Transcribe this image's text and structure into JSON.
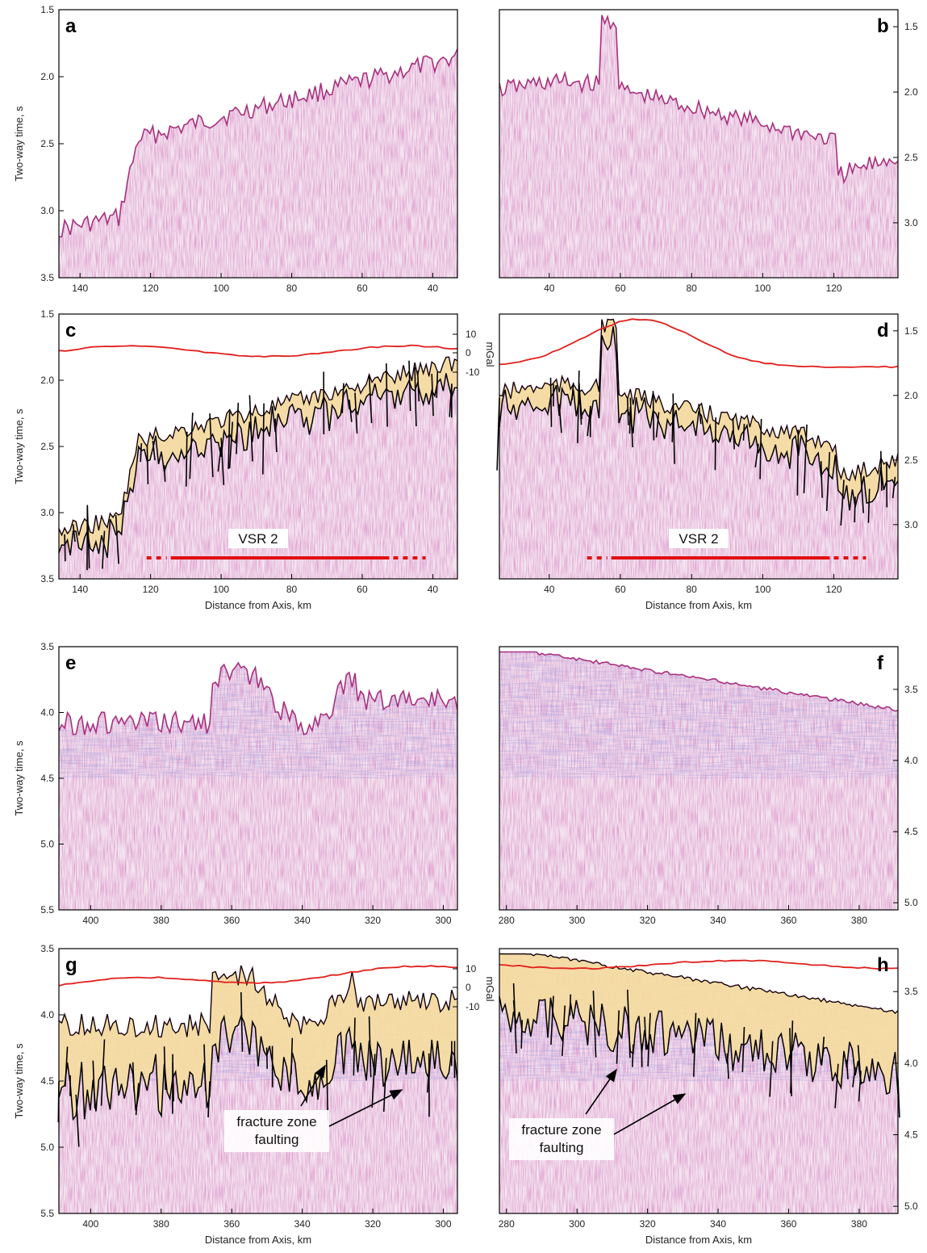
{
  "y_axis_label": "Two-way time, s",
  "x_axis_label": "Distance from Axis, km",
  "gravity_unit": "mGal",
  "colors": {
    "sediment_fill": "#f5dca0",
    "gravity_line": "#e0201c",
    "seismic_base": "#f3e5f0",
    "seismic_trace": "#a8307e",
    "horizon_line": "#000000"
  },
  "panels": [
    {
      "label": "a",
      "xticks": [
        140,
        120,
        100,
        80,
        60,
        40
      ],
      "yticks": [
        "1.5",
        "2.0",
        "2.5",
        "3.0",
        "3.5"
      ],
      "yaxis_side": "left",
      "interpreted": false
    },
    {
      "label": "b",
      "xticks": [
        40,
        60,
        80,
        100,
        120
      ],
      "yticks": [
        "1.5",
        "2.0",
        "2.5",
        "3.0"
      ],
      "yaxis_side": "right",
      "interpreted": false
    },
    {
      "label": "c",
      "xticks": [
        140,
        120,
        100,
        80,
        60,
        40
      ],
      "yticks": [
        "1.5",
        "2.0",
        "2.5",
        "3.0",
        "3.5"
      ],
      "yaxis_side": "left",
      "interpreted": true,
      "gravity_ticks": [
        "10",
        "0",
        "-10"
      ],
      "annotation": "VSR 2",
      "x_title": "Distance from Axis, km"
    },
    {
      "label": "d",
      "xticks": [
        40,
        60,
        80,
        100,
        120
      ],
      "yticks": [
        "1.5",
        "2.0",
        "2.5",
        "3.0"
      ],
      "yaxis_side": "right",
      "interpreted": true,
      "annotation": "VSR 2",
      "x_title": "Distance from Axis, km"
    },
    {
      "label": "e",
      "xticks": [
        400,
        380,
        360,
        340,
        320,
        300
      ],
      "yticks": [
        "3.5",
        "4.0",
        "4.5",
        "5.0",
        "5.5"
      ],
      "yaxis_side": "left",
      "interpreted": false
    },
    {
      "label": "f",
      "xticks": [
        280,
        300,
        320,
        340,
        360,
        380
      ],
      "yticks": [
        "3.5",
        "4.0",
        "4.5",
        "5.0"
      ],
      "yaxis_side": "right",
      "interpreted": false
    },
    {
      "label": "g",
      "xticks": [
        400,
        380,
        360,
        340,
        320,
        300
      ],
      "yticks": [
        "3.5",
        "4.0",
        "4.5",
        "5.0",
        "5.5"
      ],
      "yaxis_side": "left",
      "interpreted": true,
      "gravity_ticks": [
        "10",
        "0",
        "-10"
      ],
      "annotation": "fracture zone\nfaulting",
      "x_title": "Distance from Axis, km"
    },
    {
      "label": "h",
      "xticks": [
        280,
        300,
        320,
        340,
        360,
        380
      ],
      "yticks": [
        "3.5",
        "4.0",
        "4.5",
        "5.0"
      ],
      "yaxis_side": "right",
      "interpreted": true,
      "annotation": "fracture zone\nfaulting",
      "x_title": "Distance from Axis, km"
    }
  ]
}
